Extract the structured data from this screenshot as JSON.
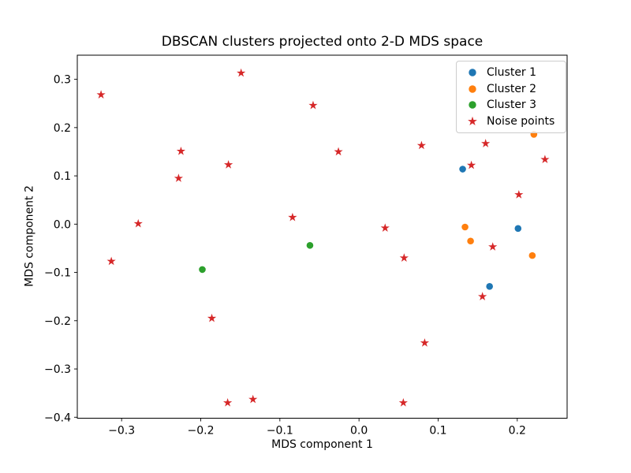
{
  "chart_data": {
    "type": "scatter",
    "title": "DBSCAN clusters projected onto 2-D MDS space",
    "xlabel": "MDS component 1",
    "ylabel": "MDS component 2",
    "xlim": [
      -0.356,
      0.263
    ],
    "ylim": [
      -0.402,
      0.35
    ],
    "grid": false,
    "xticks": [
      {
        "value": -0.3,
        "label": "−0.3"
      },
      {
        "value": -0.2,
        "label": "−0.2"
      },
      {
        "value": -0.1,
        "label": "−0.1"
      },
      {
        "value": 0.0,
        "label": "0.0"
      },
      {
        "value": 0.1,
        "label": "0.1"
      },
      {
        "value": 0.2,
        "label": "0.2"
      }
    ],
    "yticks": [
      {
        "value": 0.3,
        "label": "0.3"
      },
      {
        "value": 0.2,
        "label": "0.2"
      },
      {
        "value": 0.1,
        "label": "0.1"
      },
      {
        "value": 0.0,
        "label": "0.0"
      },
      {
        "value": -0.1,
        "label": "−0.1"
      },
      {
        "value": -0.2,
        "label": "−0.2"
      },
      {
        "value": -0.3,
        "label": "−0.3"
      },
      {
        "value": -0.4,
        "label": "−0.4"
      }
    ],
    "legend": {
      "position": "upper right",
      "entries": [
        {
          "label": "Cluster 1",
          "marker": "circle",
          "color": "#1f77b4"
        },
        {
          "label": "Cluster 2",
          "marker": "circle",
          "color": "#ff7f0e"
        },
        {
          "label": "Cluster 3",
          "marker": "circle",
          "color": "#2ca02c"
        },
        {
          "label": "Noise points",
          "marker": "star",
          "color": "#d62728"
        }
      ]
    },
    "series": [
      {
        "name": "Cluster 1",
        "marker": "circle",
        "color": "#1f77b4",
        "points": [
          [
            0.131,
            0.114
          ],
          [
            0.201,
            -0.009
          ],
          [
            0.165,
            -0.129
          ]
        ]
      },
      {
        "name": "Cluster 2",
        "marker": "circle",
        "color": "#ff7f0e",
        "points": [
          [
            0.221,
            0.186
          ],
          [
            0.134,
            -0.006
          ],
          [
            0.141,
            -0.035
          ],
          [
            0.219,
            -0.065
          ]
        ]
      },
      {
        "name": "Cluster 3",
        "marker": "circle",
        "color": "#2ca02c",
        "points": [
          [
            -0.198,
            -0.094
          ],
          [
            -0.062,
            -0.044
          ]
        ]
      },
      {
        "name": "Noise points",
        "marker": "star",
        "color": "#d62728",
        "points": [
          [
            -0.326,
            0.268
          ],
          [
            -0.149,
            0.313
          ],
          [
            -0.058,
            0.246
          ],
          [
            -0.225,
            0.151
          ],
          [
            -0.165,
            0.123
          ],
          [
            -0.228,
            0.095
          ],
          [
            -0.279,
            0.001
          ],
          [
            -0.084,
            0.014
          ],
          [
            -0.026,
            0.15
          ],
          [
            0.079,
            0.163
          ],
          [
            0.16,
            0.167
          ],
          [
            0.235,
            0.134
          ],
          [
            0.142,
            0.122
          ],
          [
            0.202,
            0.061
          ],
          [
            0.033,
            -0.008
          ],
          [
            -0.313,
            -0.077
          ],
          [
            0.057,
            -0.07
          ],
          [
            0.169,
            -0.047
          ],
          [
            0.156,
            -0.15
          ],
          [
            -0.186,
            -0.195
          ],
          [
            0.083,
            -0.246
          ],
          [
            -0.166,
            -0.37
          ],
          [
            -0.134,
            -0.363
          ],
          [
            0.056,
            -0.37
          ]
        ]
      }
    ]
  }
}
